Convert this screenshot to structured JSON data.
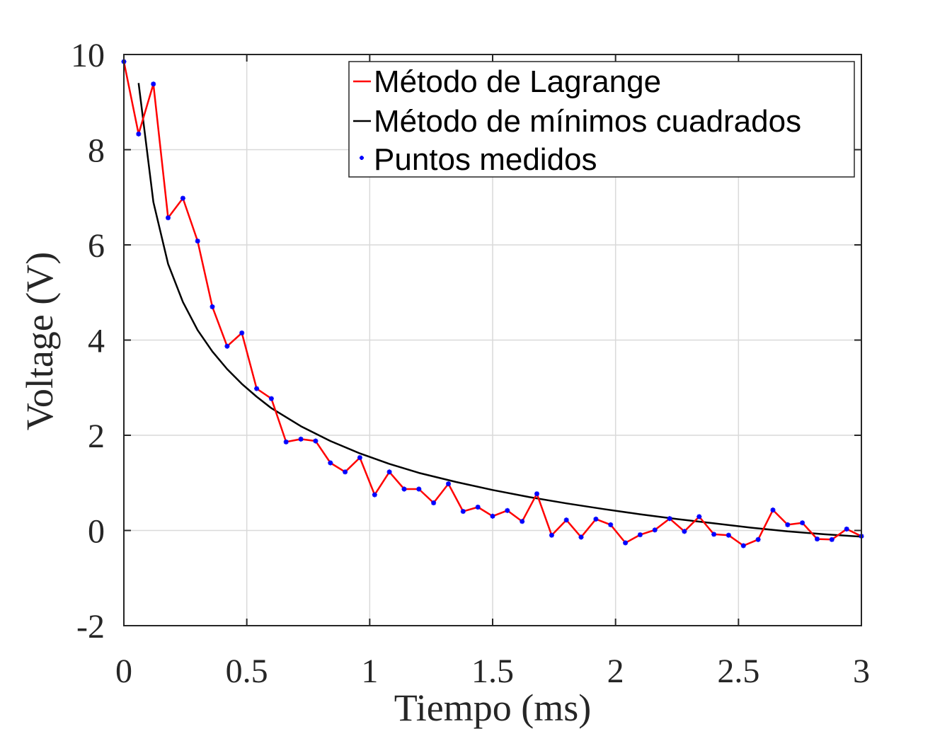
{
  "chart_data": {
    "type": "line",
    "xlabel": "Tiempo (ms)",
    "ylabel": "Voltage (V)",
    "xlim": [
      0,
      3
    ],
    "ylim": [
      -2,
      10
    ],
    "xticks": [
      0,
      0.5,
      1,
      1.5,
      2,
      2.5,
      3
    ],
    "xtick_labels": [
      "0",
      "0.5",
      "1",
      "1.5",
      "2",
      "2.5",
      "3"
    ],
    "yticks": [
      -2,
      0,
      2,
      4,
      6,
      8,
      10
    ],
    "ytick_labels": [
      "-2",
      "0",
      "2",
      "4",
      "6",
      "8",
      "10"
    ],
    "grid": true,
    "legend_position": "top-right",
    "colors": {
      "lagrange": "#ff0000",
      "least_squares": "#000000",
      "points": "#0000ff",
      "grid": "#d9d9d9",
      "axes": "#262626"
    },
    "series": [
      {
        "name": "Método de Lagrange",
        "style": "line",
        "x": [
          0,
          0.06,
          0.12,
          0.18,
          0.24,
          0.3,
          0.36,
          0.42,
          0.48,
          0.54,
          0.6,
          0.66,
          0.72,
          0.78,
          0.84,
          0.9,
          0.96,
          1.02,
          1.08,
          1.14,
          1.2,
          1.26,
          1.32,
          1.38,
          1.44,
          1.5,
          1.56,
          1.62,
          1.68,
          1.74,
          1.8,
          1.86,
          1.92,
          1.98,
          2.04,
          2.1,
          2.16,
          2.22,
          2.28,
          2.34,
          2.4,
          2.46,
          2.52,
          2.58,
          2.64,
          2.7,
          2.76,
          2.82,
          2.88,
          2.94,
          3.0
        ],
        "y": [
          9.85,
          8.33,
          9.38,
          6.57,
          6.98,
          6.08,
          4.7,
          3.87,
          4.15,
          2.98,
          2.77,
          1.86,
          1.92,
          1.88,
          1.42,
          1.23,
          1.53,
          0.75,
          1.23,
          0.87,
          0.87,
          0.58,
          0.98,
          0.4,
          0.49,
          0.3,
          0.42,
          0.19,
          0.77,
          -0.1,
          0.22,
          -0.14,
          0.24,
          0.12,
          -0.26,
          -0.09,
          0.01,
          0.25,
          -0.02,
          0.29,
          -0.08,
          -0.1,
          -0.32,
          -0.19,
          0.43,
          0.12,
          0.16,
          -0.18,
          -0.19,
          0.03,
          -0.12
        ]
      },
      {
        "name": "Método de mínimos cuadrados",
        "style": "curve",
        "x": [
          0.06,
          0.12,
          0.18,
          0.24,
          0.3,
          0.36,
          0.42,
          0.48,
          0.54,
          0.6,
          0.72,
          0.84,
          0.96,
          1.08,
          1.2,
          1.35,
          1.5,
          1.65,
          1.8,
          1.95,
          2.1,
          2.25,
          2.4,
          2.55,
          2.7,
          2.85,
          3.0
        ],
        "y": [
          9.4,
          6.9,
          5.6,
          4.8,
          4.21,
          3.76,
          3.39,
          3.08,
          2.81,
          2.57,
          2.19,
          1.88,
          1.62,
          1.4,
          1.21,
          1.02,
          0.85,
          0.7,
          0.57,
          0.45,
          0.34,
          0.24,
          0.15,
          0.06,
          -0.02,
          -0.08,
          -0.13
        ]
      },
      {
        "name": "Puntos medidos",
        "style": "markers",
        "x": [
          0,
          0.06,
          0.12,
          0.18,
          0.24,
          0.3,
          0.36,
          0.42,
          0.48,
          0.54,
          0.6,
          0.66,
          0.72,
          0.78,
          0.84,
          0.9,
          0.96,
          1.02,
          1.08,
          1.14,
          1.2,
          1.26,
          1.32,
          1.38,
          1.44,
          1.5,
          1.56,
          1.62,
          1.68,
          1.74,
          1.8,
          1.86,
          1.92,
          1.98,
          2.04,
          2.1,
          2.16,
          2.22,
          2.28,
          2.34,
          2.4,
          2.46,
          2.52,
          2.58,
          2.64,
          2.7,
          2.76,
          2.82,
          2.88,
          2.94,
          3.0
        ],
        "y": [
          9.85,
          8.33,
          9.38,
          6.57,
          6.98,
          6.08,
          4.7,
          3.87,
          4.15,
          2.98,
          2.77,
          1.86,
          1.92,
          1.88,
          1.42,
          1.23,
          1.53,
          0.75,
          1.23,
          0.87,
          0.87,
          0.58,
          0.98,
          0.4,
          0.49,
          0.3,
          0.42,
          0.19,
          0.77,
          -0.1,
          0.22,
          -0.14,
          0.24,
          0.12,
          -0.26,
          -0.09,
          0.01,
          0.25,
          -0.02,
          0.29,
          -0.08,
          -0.1,
          -0.32,
          -0.19,
          0.43,
          0.12,
          0.16,
          -0.18,
          -0.19,
          0.03,
          -0.12
        ]
      }
    ]
  }
}
